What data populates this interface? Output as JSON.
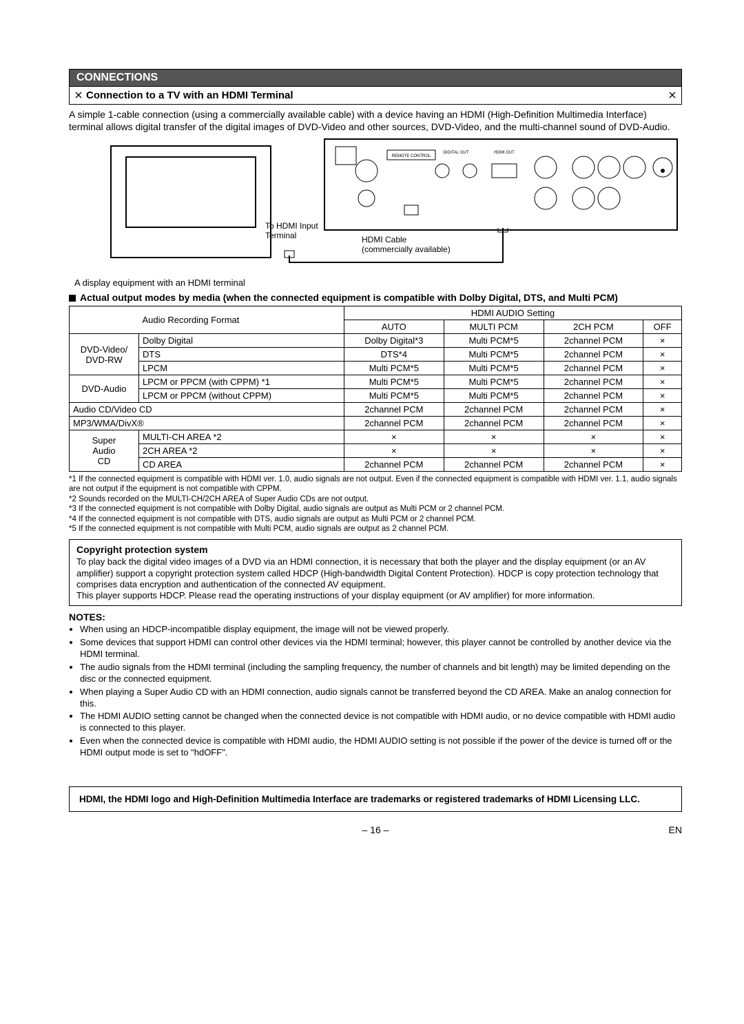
{
  "section_header": "CONNECTIONS",
  "subtitle": "Connection to a TV with an HDMI Terminal",
  "intro_text": "A simple 1-cable connection (using a commercially available cable) with a device having an HDMI (High-Definition Multimedia Interface) terminal allows digital transfer of the digital images of DVD-Video and other sources, DVD-Video, and the multi-channel sound of DVD-Audio.",
  "diagram": {
    "to_hdmi_label_line1": "To HDMI Input",
    "to_hdmi_label_line2": "Terminal",
    "hdmi_cable_line1": "HDMI Cable",
    "hdmi_cable_line2": "(commercially available)",
    "display_caption": "A display equipment with an HDMI terminal"
  },
  "table_heading": "Actual output modes by media (when the connected equipment is compatible with Dolby Digital, DTS, and Multi PCM)",
  "table": {
    "hdmi_setting_header": "HDMI AUDIO Setting",
    "col_headers": [
      "Audio Recording Format",
      "AUTO",
      "MULTI PCM",
      "2CH PCM",
      "OFF"
    ],
    "groups": [
      {
        "group": "DVD-Video/ DVD-RW",
        "rows": [
          {
            "format": "Dolby Digital",
            "cells": [
              "Dolby Digital*3",
              "Multi PCM*5",
              "2channel PCM",
              "×"
            ]
          },
          {
            "format": "DTS",
            "cells": [
              "DTS*4",
              "Multi PCM*5",
              "2channel PCM",
              "×"
            ]
          },
          {
            "format": "LPCM",
            "cells": [
              "Multi PCM*5",
              "Multi PCM*5",
              "2channel PCM",
              "×"
            ]
          }
        ]
      },
      {
        "group": "DVD-Audio",
        "rows": [
          {
            "format": "LPCM or PPCM (with CPPM) *1",
            "cells": [
              "Multi PCM*5",
              "Multi PCM*5",
              "2channel PCM",
              "×"
            ]
          },
          {
            "format": "LPCM or PPCM (without CPPM)",
            "cells": [
              "Multi PCM*5",
              "Multi PCM*5",
              "2channel PCM",
              "×"
            ]
          }
        ]
      },
      {
        "group": "Audio CD/Video CD",
        "span_full": true,
        "rows": [
          {
            "format": "",
            "cells": [
              "2channel PCM",
              "2channel PCM",
              "2channel PCM",
              "×"
            ]
          }
        ]
      },
      {
        "group": "MP3/WMA/DivX®",
        "span_full": true,
        "rows": [
          {
            "format": "",
            "cells": [
              "2channel PCM",
              "2channel PCM",
              "2channel PCM",
              "×"
            ]
          }
        ]
      },
      {
        "group": "Super Audio CD",
        "rows": [
          {
            "format": "MULTI-CH AREA *2",
            "cells": [
              "×",
              "×",
              "×",
              "×"
            ]
          },
          {
            "format": "2CH AREA *2",
            "cells": [
              "×",
              "×",
              "×",
              "×"
            ]
          },
          {
            "format": "CD AREA",
            "cells": [
              "2channel PCM",
              "2channel PCM",
              "2channel PCM",
              "×"
            ]
          }
        ]
      }
    ]
  },
  "footnotes": [
    "*1 If the connected equipment is compatible with HDMI ver. 1.0, audio signals are not output. Even if the connected equipment is compatible with HDMI ver. 1.1, audio signals are not output if the equipment is not compatible with CPPM.",
    "*2 Sounds recorded on the MULTI-CH/2CH AREA of Super Audio CDs are not output.",
    "*3 If the connected equipment is not compatible with Dolby Digital, audio signals are output as Multi PCM or 2 channel PCM.",
    "*4 If the connected equipment is not compatible with DTS, audio signals are output as Multi PCM or 2 channel PCM.",
    "*5 If the connected equipment is not compatible with Multi PCM, audio signals are output as 2 channel PCM."
  ],
  "copyright_box": {
    "title": "Copyright protection system",
    "para1": "To play back the digital video images of a DVD via an HDMI connection, it is necessary that both the player and the display equipment (or an AV amplifier) support a copyright protection system called HDCP (High-bandwidth Digital Content Protection). HDCP is copy protection technology that comprises data encryption and authentication of the connected AV equipment.",
    "para2": "This player supports HDCP. Please read the operating instructions of your display equipment (or AV amplifier) for more information."
  },
  "notes_heading": "NOTES:",
  "notes": [
    "When using an HDCP-incompatible display equipment, the image will not be viewed properly.",
    "Some devices that support HDMI can control other devices via the HDMI terminal; however, this player cannot be controlled by another device via the HDMI terminal.",
    "The audio signals from the HDMI terminal (including the sampling frequency, the number of channels and bit length) may be limited depending on the disc or the connected equipment.",
    "When playing a Super Audio CD with an HDMI connection, audio signals cannot be transferred beyond the CD AREA. Make an analog connection for this.",
    "The HDMI AUDIO setting cannot be changed when the connected device is not compatible with HDMI audio, or no device compatible with HDMI audio is connected to this player.",
    "Even when the connected device is compatible with HDMI audio, the HDMI AUDIO setting is not possible if the power of the device is turned off or the HDMI output mode is set to \"hdOFF\"."
  ],
  "trademark_text": "HDMI, the HDMI logo and High-Definition Multimedia Interface are trademarks or registered trademarks of HDMI Licensing LLC.",
  "footer": {
    "page_number": "– 16 –",
    "lang": "EN"
  }
}
